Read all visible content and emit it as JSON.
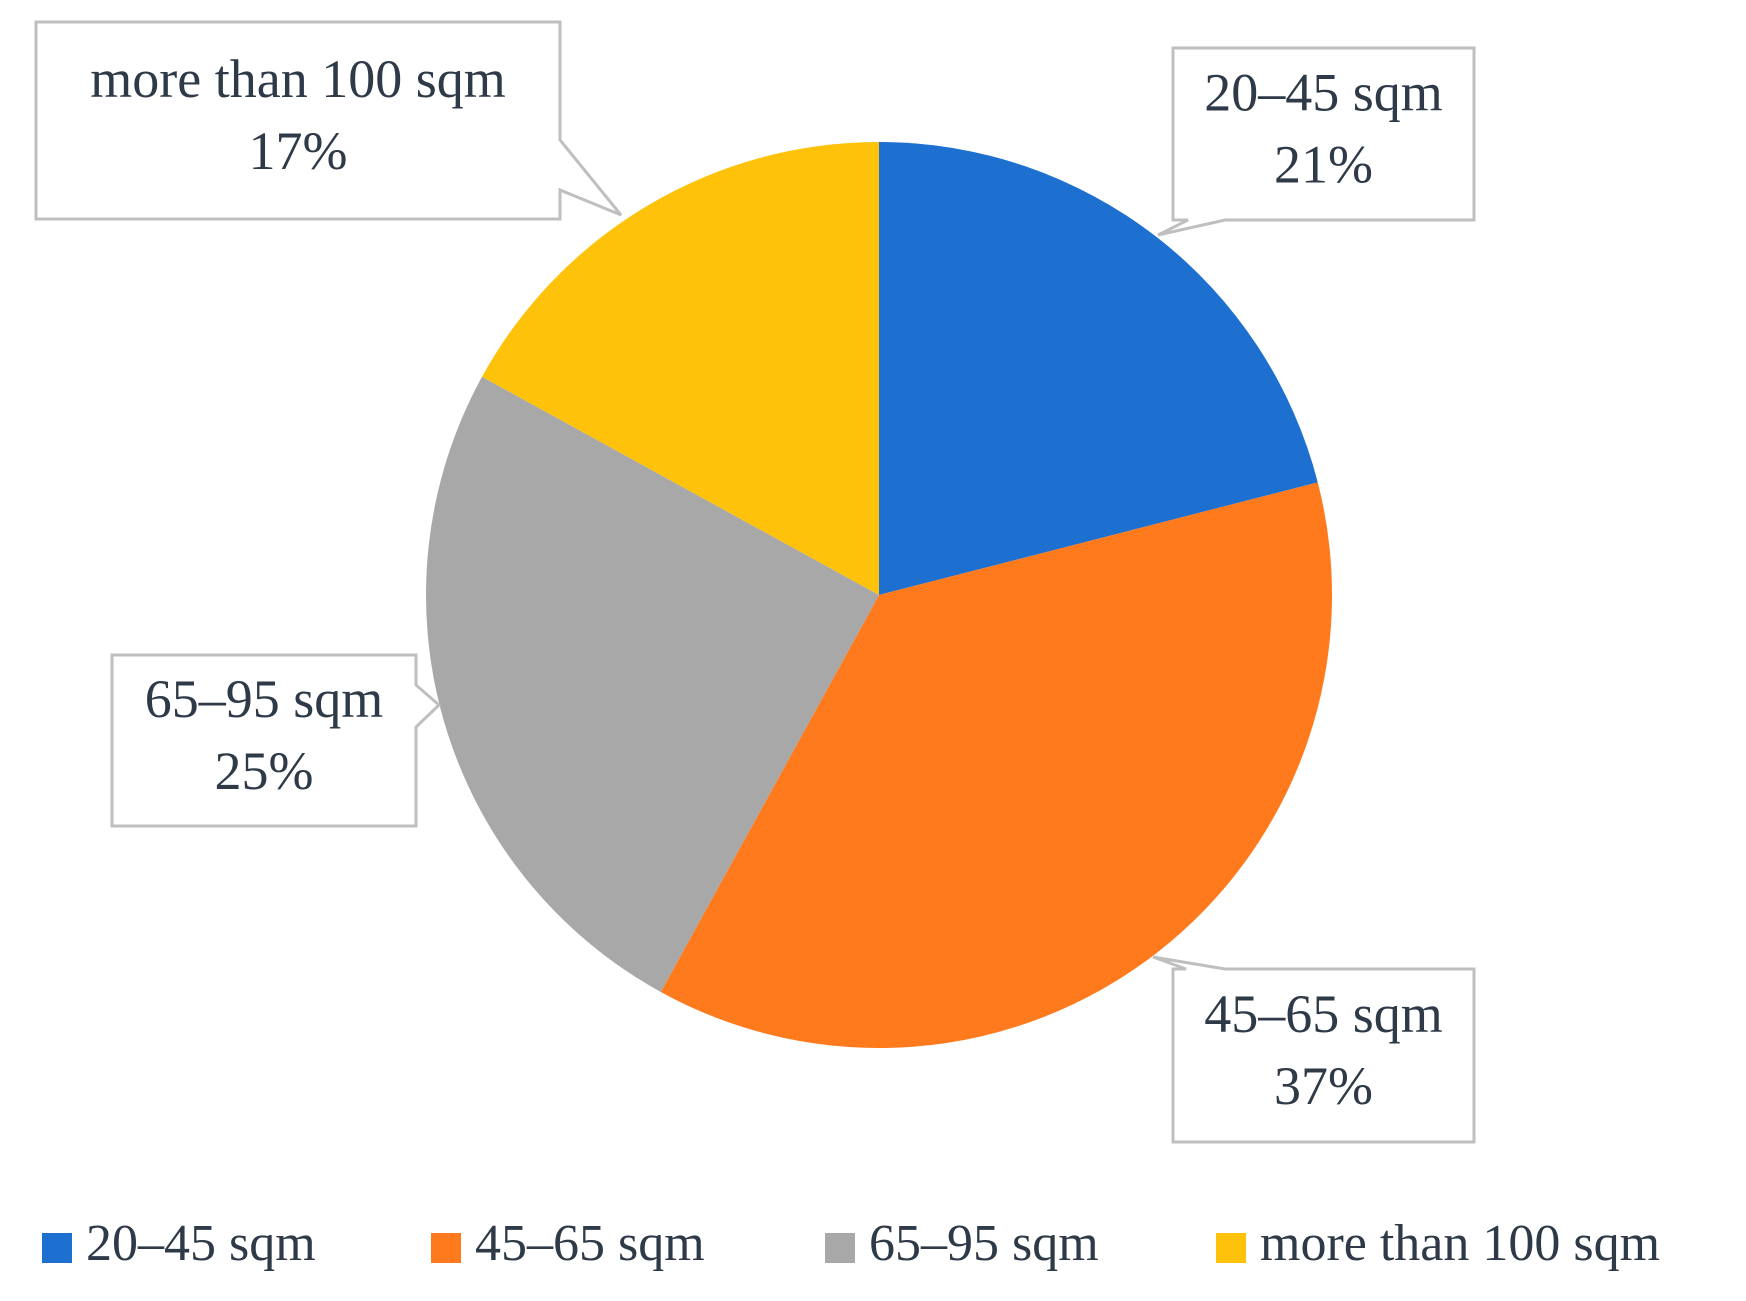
{
  "chart_data": {
    "type": "pie",
    "categories": [
      "20–45 sqm",
      "45–65 sqm",
      "65–95 sqm",
      "more than 100 sqm"
    ],
    "values": [
      21,
      37,
      25,
      17
    ],
    "value_labels": [
      "21%",
      "37%",
      "25%",
      "17%"
    ],
    "colors": [
      "#1d6fd0",
      "#ff7a1c",
      "#a8a8a8",
      "#ffc20a"
    ],
    "legend": "bottom"
  }
}
